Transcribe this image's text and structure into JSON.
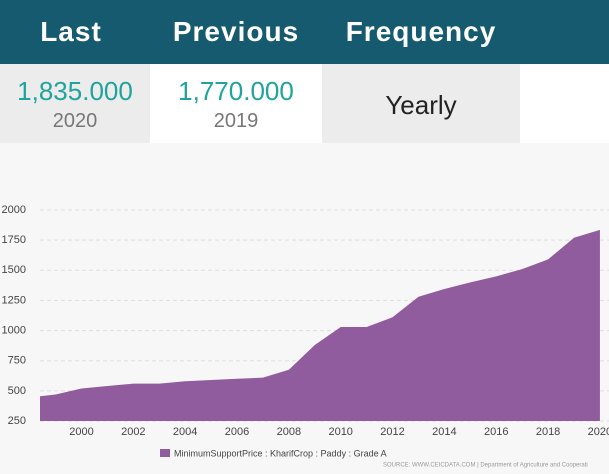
{
  "header": {
    "columns": [
      {
        "label": "Last",
        "value": "1,835.000",
        "date": "2020"
      },
      {
        "label": "Previous",
        "value": "1,770.000",
        "date": "2019"
      },
      {
        "label": "Frequency",
        "value": "Yearly"
      }
    ]
  },
  "chart_data": {
    "type": "area",
    "x": [
      1998,
      1999,
      2000,
      2001,
      2002,
      2003,
      2004,
      2005,
      2006,
      2007,
      2008,
      2009,
      2010,
      2011,
      2012,
      2013,
      2014,
      2015,
      2016,
      2017,
      2018,
      2019,
      2020
    ],
    "series": [
      {
        "name": "MinimumSupportPrice : KharifCrop : Paddy : Grade A",
        "color": "#915c9d",
        "values": [
          445,
          470,
          520,
          540,
          560,
          560,
          580,
          590,
          600,
          610,
          675,
          880,
          1030,
          1030,
          1110,
          1280,
          1345,
          1400,
          1450,
          1510,
          1590,
          1770,
          1835
        ]
      }
    ],
    "xlim": [
      1998.4,
      2020.35
    ],
    "xticks": [
      2000,
      2002,
      2004,
      2006,
      2008,
      2010,
      2012,
      2014,
      2016,
      2018,
      2020
    ],
    "ylim": [
      250,
      2000
    ],
    "yticks": [
      250,
      500,
      750,
      1000,
      1250,
      1500,
      1750,
      2000
    ],
    "grid": true,
    "source": "SOURCE: WWW.CEICDATA.COM | Department of Agriculture and Cooperati"
  }
}
